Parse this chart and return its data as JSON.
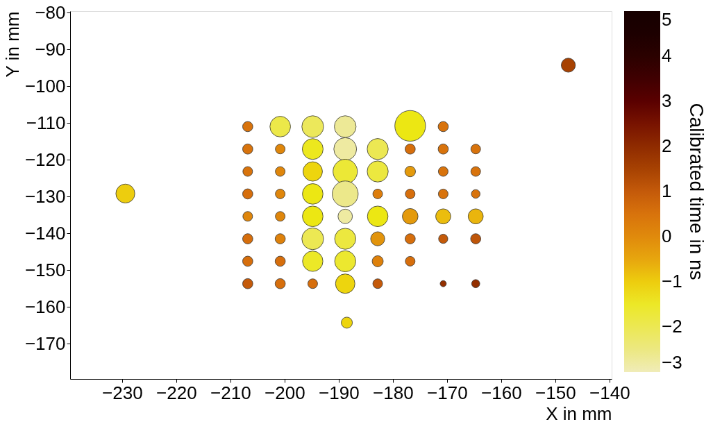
{
  "chart_data": {
    "type": "bubble",
    "xlabel": "X in mm",
    "ylabel": "Y in mm",
    "clabel": "Calibrated time in ns",
    "xlim": [
      -239.6,
      -139.6
    ],
    "ylim": [
      -179.6,
      -79.6
    ],
    "xticks": [
      -230,
      -220,
      -210,
      -200,
      -190,
      -180,
      -170,
      -160,
      -150,
      -140
    ],
    "yticks": [
      -170,
      -160,
      -150,
      -140,
      -130,
      -120,
      -110,
      -100,
      -90,
      -80
    ],
    "clim": [
      -3,
      5
    ],
    "cticks": [
      -3,
      -2,
      -1,
      0,
      1,
      2,
      3,
      4,
      5
    ],
    "marker": "circle",
    "grid": false,
    "x": [
      -206.8,
      -200.8,
      -194.8,
      -188.8,
      -176.8,
      -170.7,
      -206.8,
      -200.8,
      -194.8,
      -188.8,
      -182.8,
      -176.8,
      -170.7,
      -164.7,
      -206.8,
      -200.8,
      -194.8,
      -188.8,
      -182.8,
      -176.8,
      -170.7,
      -164.7,
      -206.8,
      -200.8,
      -194.8,
      -188.8,
      -182.8,
      -176.8,
      -170.7,
      -164.7,
      -206.8,
      -200.8,
      -194.8,
      -188.8,
      -182.8,
      -176.8,
      -170.7,
      -164.7,
      -206.8,
      -200.8,
      -194.8,
      -188.8,
      -182.8,
      -176.8,
      -170.7,
      -164.7,
      -206.8,
      -200.8,
      -194.8,
      -188.8,
      -182.8,
      -176.8,
      -206.8,
      -200.8,
      -194.8,
      -188.8,
      -182.8,
      -170.7,
      -164.7,
      -229.4,
      -147.6,
      -188.5
    ],
    "values": [
      -111,
      -111,
      -111,
      -111,
      -110.8,
      -111,
      -117.1,
      -117.1,
      -117.1,
      -117.1,
      -117.1,
      -117.1,
      -117.1,
      -117.1,
      -123.2,
      -123.2,
      -123.2,
      -123.2,
      -123.2,
      -123.2,
      -123.2,
      -123.2,
      -129.3,
      -129.3,
      -129.3,
      -129.3,
      -129.3,
      -129.3,
      -129.3,
      -129.3,
      -135.4,
      -135.4,
      -135.4,
      -135.4,
      -135.4,
      -135.4,
      -135.4,
      -135.4,
      -141.5,
      -141.5,
      -141.5,
      -141.5,
      -141.5,
      -141.5,
      -141.5,
      -141.5,
      -147.6,
      -147.6,
      -147.6,
      -147.6,
      -147.6,
      -147.6,
      -153.7,
      -153.7,
      -153.7,
      -153.7,
      -153.7,
      -153.7,
      -153.7,
      -129.2,
      -94.3,
      -164.3
    ],
    "cvalues": [
      0.5,
      -1.9,
      -2.1,
      -2.7,
      -1.3,
      0.5,
      0.5,
      0.1,
      -1.4,
      -2.8,
      -2.0,
      0.6,
      0.5,
      0.5,
      0.5,
      0.1,
      -1.1,
      -1.7,
      -1.8,
      -0.3,
      0.5,
      0.5,
      0.6,
      0.1,
      -1.3,
      -2.6,
      0.3,
      0.6,
      0.5,
      0.5,
      0.1,
      0.1,
      -1.3,
      -2.8,
      -1.3,
      -0.3,
      -0.8,
      -0.7,
      0.6,
      0.2,
      -2.0,
      -1.8,
      -0.2,
      0.6,
      1.0,
      1.1,
      0.6,
      0.6,
      -1.5,
      -1.6,
      0.2,
      0.6,
      1.0,
      0.6,
      0.6,
      -1.1,
      1.0,
      1.9,
      1.9,
      -1.0,
      1.5,
      -1.1
    ],
    "sizes": [
      0.11,
      0.45,
      0.5,
      0.5,
      1.0,
      0.11,
      0.11,
      0.1,
      0.46,
      0.55,
      0.47,
      0.11,
      0.11,
      0.1,
      0.1,
      0.1,
      0.4,
      0.63,
      0.47,
      0.12,
      0.1,
      0.1,
      0.11,
      0.1,
      0.45,
      0.71,
      0.1,
      0.1,
      0.1,
      0.08,
      0.1,
      0.1,
      0.45,
      0.22,
      0.45,
      0.26,
      0.24,
      0.24,
      0.11,
      0.11,
      0.5,
      0.47,
      0.21,
      0.11,
      0.09,
      0.11,
      0.11,
      0.11,
      0.44,
      0.47,
      0.13,
      0.1,
      0.11,
      0.11,
      0.1,
      0.4,
      0.1,
      0.04,
      0.07,
      0.38,
      0.21,
      0.13
    ]
  }
}
